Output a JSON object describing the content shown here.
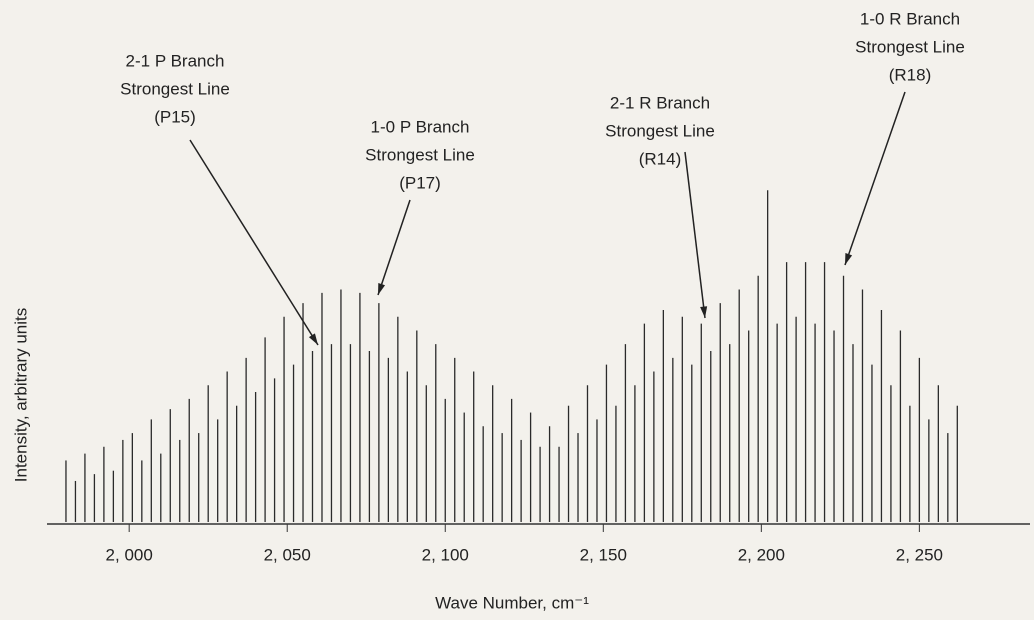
{
  "chart_data": {
    "type": "stem",
    "xlabel": "Wave Number, cm⁻¹",
    "ylabel": "Intensity, arbitrary units",
    "color": "#2a2a2a",
    "xlim": [
      1974,
      2285
    ],
    "ylim": [
      0,
      100
    ],
    "xticks": [
      {
        "value": 2000,
        "label": "2, 000"
      },
      {
        "value": 2050,
        "label": "2, 050"
      },
      {
        "value": 2100,
        "label": "2, 100"
      },
      {
        "value": 2150,
        "label": "2, 150"
      },
      {
        "value": 2200,
        "label": "2, 200"
      },
      {
        "value": 2250,
        "label": "2, 250"
      }
    ],
    "x": [
      1980,
      1983,
      1986,
      1989,
      1992,
      1995,
      1998,
      2001,
      2004,
      2007,
      2010,
      2013,
      2016,
      2019,
      2022,
      2025,
      2028,
      2031,
      2034,
      2037,
      2040,
      2043,
      2046,
      2049,
      2052,
      2055,
      2058,
      2061,
      2064,
      2067,
      2070,
      2073,
      2076,
      2079,
      2082,
      2085,
      2088,
      2091,
      2094,
      2097,
      2100,
      2103,
      2106,
      2109,
      2112,
      2115,
      2118,
      2121,
      2124,
      2127,
      2130,
      2133,
      2136,
      2139,
      2142,
      2145,
      2148,
      2151,
      2154,
      2157,
      2160,
      2163,
      2166,
      2169,
      2172,
      2175,
      2178,
      2181,
      2184,
      2187,
      2190,
      2193,
      2196,
      2199,
      2202,
      2205,
      2208,
      2211,
      2214,
      2217,
      2220,
      2223,
      2226,
      2229,
      2232,
      2235,
      2238,
      2241,
      2244,
      2247,
      2250,
      2253,
      2256,
      2259,
      2262
    ],
    "values": [
      18,
      12,
      20,
      14,
      22,
      15,
      24,
      26,
      18,
      30,
      20,
      33,
      24,
      36,
      26,
      40,
      30,
      44,
      34,
      48,
      38,
      54,
      42,
      60,
      46,
      64,
      50,
      67,
      52,
      68,
      52,
      67,
      50,
      64,
      48,
      60,
      44,
      56,
      40,
      52,
      36,
      48,
      32,
      44,
      28,
      40,
      26,
      36,
      24,
      32,
      22,
      28,
      22,
      34,
      26,
      40,
      30,
      46,
      34,
      52,
      40,
      58,
      44,
      62,
      48,
      60,
      46,
      58,
      50,
      64,
      52,
      68,
      56,
      72,
      97,
      58,
      76,
      60,
      76,
      58,
      76,
      56,
      72,
      52,
      68,
      46,
      62,
      40,
      56,
      34,
      48,
      30,
      40,
      26,
      34
    ],
    "annotations": [
      {
        "lines": [
          "2-1 P Branch",
          "Strongest Line",
          "(P15)"
        ]
      },
      {
        "lines": [
          "1-0 P Branch",
          "Strongest Line",
          "(P17)"
        ]
      },
      {
        "lines": [
          "2-1 R Branch",
          "Strongest Line",
          "(R14)"
        ]
      },
      {
        "lines": [
          "1-0 R Branch",
          "Strongest Line",
          "(R18)"
        ]
      }
    ]
  }
}
